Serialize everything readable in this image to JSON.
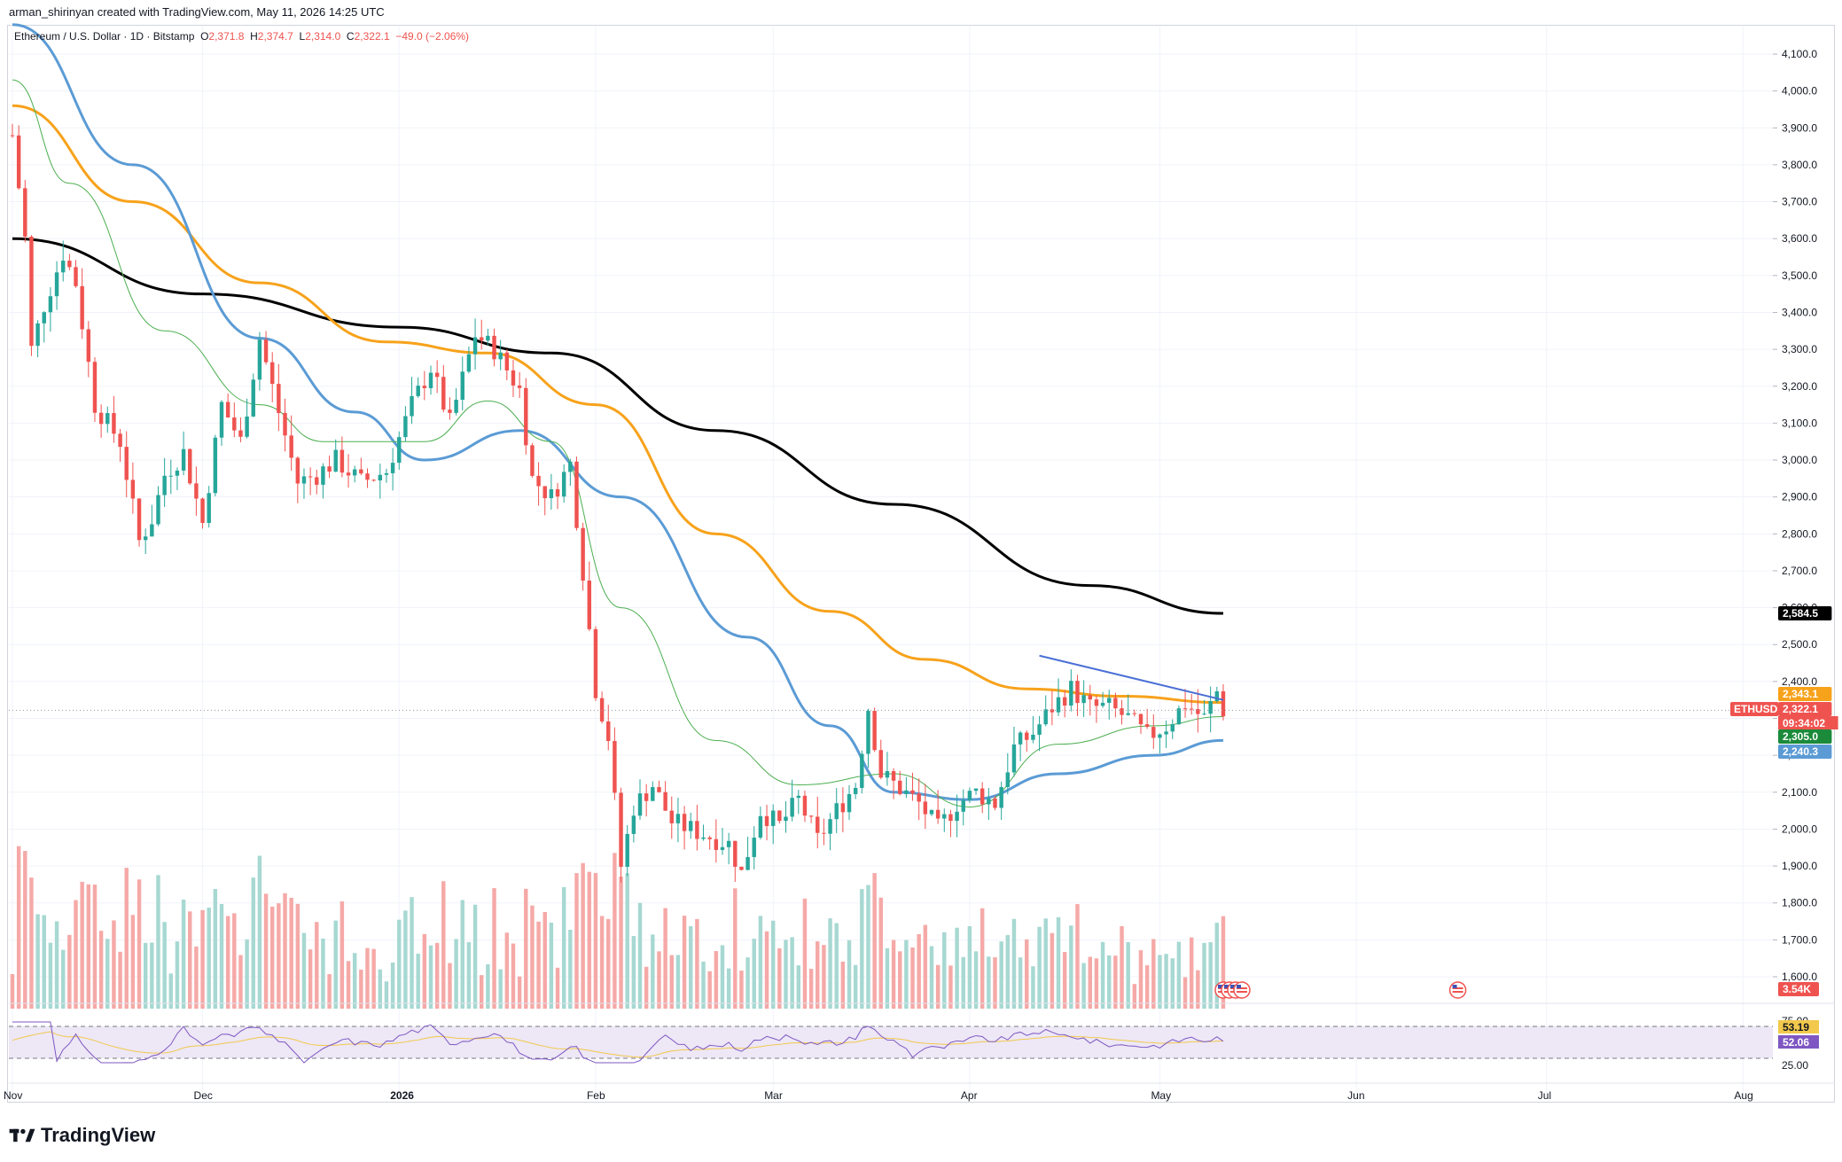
{
  "credit": "arman_shirinyan created with TradingView.com, May 11, 2026 14:25 UTC",
  "legend": {
    "symbol": "Ethereum / U.S. Dollar · 1D · Bitstamp",
    "o_label": "O",
    "o": "2,371.8",
    "h_label": "H",
    "h": "2,374.7",
    "l_label": "L",
    "l": "2,314.0",
    "c_label": "C",
    "c": "2,322.1",
    "change": "−49.0 (−2.06%)"
  },
  "brand": "TradingView",
  "colors": {
    "up": "#26a69a",
    "down": "#ef5350",
    "ma200": "#000000",
    "ma100": "#f7a21b",
    "ma50": "#5b9bd5",
    "ma20": "#4caf50",
    "trendline": "#4a6fd6",
    "rsi": "#7e57c2",
    "rsi_ma": "#f2c94c",
    "rsi_band": "#ede7f6"
  },
  "chart_data": {
    "type": "candlestick",
    "symbol": "ETHUSD",
    "timeframe": "1D",
    "y_ticks": [
      1600,
      1700,
      1800,
      1900,
      2000,
      2100,
      2200,
      2300,
      2400,
      2500,
      2600,
      2700,
      2800,
      2900,
      3000,
      3100,
      3200,
      3300,
      3400,
      3500,
      3600,
      3700,
      3800,
      3900,
      4000,
      4100
    ],
    "y_tick_labels": [
      "1,600.0",
      "1,700.0",
      "1,800.0",
      "1,900.0",
      "2,000.0",
      "2,100.0",
      "2,200.0",
      "2,300.0",
      "2,400.0",
      "2,500.0",
      "2,600.0",
      "2,700.0",
      "2,800.0",
      "2,900.0",
      "3,000.0",
      "3,100.0",
      "3,200.0",
      "3,300.0",
      "3,400.0",
      "3,500.0",
      "3,600.0",
      "3,700.0",
      "3,800.0",
      "3,900.0",
      "4,000.0",
      "4,100.0"
    ],
    "x_labels": [
      {
        "label": "Nov",
        "date": "2025-11-01"
      },
      {
        "label": "Dec",
        "date": "2025-12-01"
      },
      {
        "label": "2026",
        "date": "2026-01-01"
      },
      {
        "label": "Feb",
        "date": "2026-02-01"
      },
      {
        "label": "Mar",
        "date": "2026-03-01"
      },
      {
        "label": "Apr",
        "date": "2026-04-01"
      },
      {
        "label": "May",
        "date": "2026-05-01"
      },
      {
        "label": "Jun",
        "date": "2026-06-01"
      },
      {
        "label": "Jul",
        "date": "2026-07-01"
      },
      {
        "label": "Aug",
        "date": "2026-08-01"
      }
    ],
    "x_range": [
      "2025-11-01",
      "2026-08-05"
    ],
    "price_path": [
      [
        "2025-11-01",
        3880
      ],
      [
        "2025-11-03",
        3600
      ],
      [
        "2025-11-04",
        3300
      ],
      [
        "2025-11-06",
        3420
      ],
      [
        "2025-11-09",
        3560
      ],
      [
        "2025-11-11",
        3480
      ],
      [
        "2025-11-14",
        3150
      ],
      [
        "2025-11-18",
        3050
      ],
      [
        "2025-11-21",
        2780
      ],
      [
        "2025-11-23",
        2840
      ],
      [
        "2025-11-25",
        2960
      ],
      [
        "2025-11-28",
        3020
      ],
      [
        "2025-12-01",
        2830
      ],
      [
        "2025-12-04",
        3150
      ],
      [
        "2025-12-07",
        3050
      ],
      [
        "2025-12-10",
        3330
      ],
      [
        "2025-12-13",
        3130
      ],
      [
        "2025-12-16",
        2940
      ],
      [
        "2025-12-19",
        2960
      ],
      [
        "2025-12-22",
        3000
      ],
      [
        "2025-12-26",
        2940
      ],
      [
        "2025-12-30",
        2970
      ],
      [
        "2026-01-03",
        3150
      ],
      [
        "2026-01-06",
        3250
      ],
      [
        "2026-01-09",
        3100
      ],
      [
        "2026-01-13",
        3340
      ],
      [
        "2026-01-16",
        3300
      ],
      [
        "2026-01-20",
        3190
      ],
      [
        "2026-01-22",
        2950
      ],
      [
        "2026-01-25",
        2900
      ],
      [
        "2026-01-28",
        2990
      ],
      [
        "2026-01-30",
        2700
      ],
      [
        "2026-02-01",
        2380
      ],
      [
        "2026-02-03",
        2250
      ],
      [
        "2026-02-05",
        1900
      ],
      [
        "2026-02-07",
        2060
      ],
      [
        "2026-02-10",
        2120
      ],
      [
        "2026-02-13",
        2020
      ],
      [
        "2026-02-16",
        2000
      ],
      [
        "2026-02-19",
        1980
      ],
      [
        "2026-02-22",
        1960
      ],
      [
        "2026-02-24",
        1880
      ],
      [
        "2026-02-27",
        2050
      ],
      [
        "2026-03-02",
        2010
      ],
      [
        "2026-03-05",
        2080
      ],
      [
        "2026-03-08",
        1970
      ],
      [
        "2026-03-11",
        2050
      ],
      [
        "2026-03-14",
        2120
      ],
      [
        "2026-03-16",
        2330
      ],
      [
        "2026-03-18",
        2150
      ],
      [
        "2026-03-21",
        2110
      ],
      [
        "2026-03-24",
        2070
      ],
      [
        "2026-03-27",
        2000
      ],
      [
        "2026-03-30",
        2070
      ],
      [
        "2026-04-02",
        2100
      ],
      [
        "2026-04-05",
        2070
      ],
      [
        "2026-04-08",
        2220
      ],
      [
        "2026-04-11",
        2260
      ],
      [
        "2026-04-14",
        2330
      ],
      [
        "2026-04-17",
        2380
      ],
      [
        "2026-04-20",
        2330
      ],
      [
        "2026-04-23",
        2330
      ],
      [
        "2026-04-26",
        2300
      ],
      [
        "2026-04-29",
        2250
      ],
      [
        "2026-05-02",
        2280
      ],
      [
        "2026-05-05",
        2340
      ],
      [
        "2026-05-08",
        2300
      ],
      [
        "2026-05-10",
        2372
      ],
      [
        "2026-05-11",
        2322
      ]
    ],
    "series": [
      {
        "name": "MA200",
        "color": "#000000",
        "points": [
          [
            "2025-11-01",
            3600
          ],
          [
            "2025-12-01",
            3450
          ],
          [
            "2026-01-01",
            3360
          ],
          [
            "2026-01-25",
            3290
          ],
          [
            "2026-02-20",
            3080
          ],
          [
            "2026-03-20",
            2880
          ],
          [
            "2026-04-20",
            2660
          ],
          [
            "2026-05-11",
            2584.5
          ]
        ]
      },
      {
        "name": "MA100",
        "color": "#f7a21b",
        "points": [
          [
            "2025-11-01",
            3960
          ],
          [
            "2025-11-20",
            3700
          ],
          [
            "2025-12-10",
            3480
          ],
          [
            "2025-12-30",
            3320
          ],
          [
            "2026-01-15",
            3290
          ],
          [
            "2026-02-01",
            3150
          ],
          [
            "2026-02-20",
            2800
          ],
          [
            "2026-03-10",
            2590
          ],
          [
            "2026-03-25",
            2460
          ],
          [
            "2026-04-10",
            2380
          ],
          [
            "2026-04-25",
            2360
          ],
          [
            "2026-05-11",
            2343.1
          ]
        ]
      },
      {
        "name": "MA50",
        "color": "#5b9bd5",
        "points": [
          [
            "2025-11-01",
            4180
          ],
          [
            "2025-11-20",
            3800
          ],
          [
            "2025-12-10",
            3330
          ],
          [
            "2025-12-25",
            3130
          ],
          [
            "2026-01-05",
            3000
          ],
          [
            "2026-01-20",
            3080
          ],
          [
            "2026-02-05",
            2900
          ],
          [
            "2026-02-25",
            2520
          ],
          [
            "2026-03-10",
            2280
          ],
          [
            "2026-03-20",
            2100
          ],
          [
            "2026-04-01",
            2080
          ],
          [
            "2026-04-15",
            2150
          ],
          [
            "2026-04-30",
            2200
          ],
          [
            "2026-05-11",
            2240.3
          ]
        ]
      },
      {
        "name": "MA20",
        "color": "#4caf50",
        "points": [
          [
            "2025-11-01",
            4030
          ],
          [
            "2025-11-10",
            3750
          ],
          [
            "2025-11-25",
            3350
          ],
          [
            "2025-12-10",
            3150
          ],
          [
            "2025-12-20",
            3050
          ],
          [
            "2026-01-05",
            3050
          ],
          [
            "2026-01-15",
            3160
          ],
          [
            "2026-01-25",
            3050
          ],
          [
            "2026-02-05",
            2600
          ],
          [
            "2026-02-20",
            2240
          ],
          [
            "2026-03-05",
            2120
          ],
          [
            "2026-03-20",
            2150
          ],
          [
            "2026-04-01",
            2060
          ],
          [
            "2026-04-15",
            2230
          ],
          [
            "2026-04-30",
            2280
          ],
          [
            "2026-05-11",
            2305.0
          ]
        ]
      }
    ],
    "trendline": [
      [
        "2026-04-12",
        2470
      ],
      [
        "2026-05-11",
        2350
      ]
    ],
    "last_prices": [
      {
        "label": "2,584.5",
        "value": 2584.5,
        "color": "#000000"
      },
      {
        "label": "2,343.1",
        "value": 2343.1,
        "color": "#f7a21b"
      },
      {
        "label": "2,322.1",
        "value": 2322.1,
        "color": "#ef5350",
        "symbol": "ETHUSD",
        "countdown": "09:34:02"
      },
      {
        "label": "2,305.0",
        "value": 2305.0,
        "color": "#1b8a3a"
      },
      {
        "label": "2,240.3",
        "value": 2240.3,
        "color": "#5b9bd5"
      }
    ],
    "volume_label": "3.54K",
    "rsi": {
      "upper": 75,
      "lower": 25,
      "upper_label": "75.00",
      "lower_label": "25.00",
      "value": 53.19,
      "value_label": "53.19",
      "ma": 52.06,
      "ma_label": "52.06"
    }
  }
}
